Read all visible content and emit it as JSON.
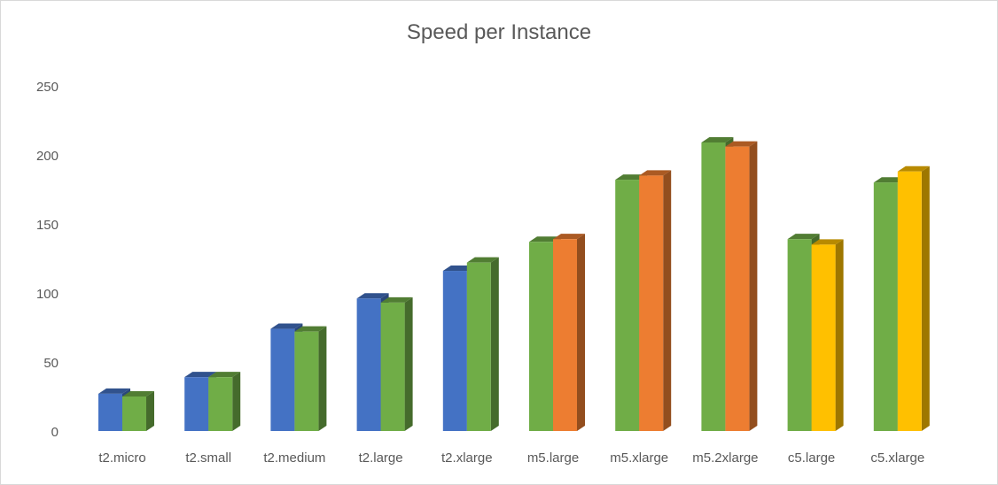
{
  "chart_data": {
    "type": "bar",
    "title": "Speed per Instance",
    "categories": [
      "t2.micro",
      "t2.small",
      "t2.medium",
      "t2.large",
      "t2.xlarge",
      "m5.large",
      "m5.xlarge",
      "m5.2xlarge",
      "c5.large",
      "c5.xlarge"
    ],
    "bars": [
      [
        {
          "value": 27,
          "color": "#4472c4"
        },
        {
          "value": 25,
          "color": "#70ad47"
        }
      ],
      [
        {
          "value": 39,
          "color": "#4472c4"
        },
        {
          "value": 39,
          "color": "#70ad47"
        }
      ],
      [
        {
          "value": 74,
          "color": "#4472c4"
        },
        {
          "value": 72,
          "color": "#70ad47"
        }
      ],
      [
        {
          "value": 96,
          "color": "#4472c4"
        },
        {
          "value": 93,
          "color": "#70ad47"
        }
      ],
      [
        {
          "value": 116,
          "color": "#4472c4"
        },
        {
          "value": 122,
          "color": "#70ad47"
        }
      ],
      [
        {
          "value": 137,
          "color": "#70ad47"
        },
        {
          "value": 139,
          "color": "#ed7d31"
        }
      ],
      [
        {
          "value": 182,
          "color": "#70ad47"
        },
        {
          "value": 185,
          "color": "#ed7d31"
        }
      ],
      [
        {
          "value": 209,
          "color": "#70ad47"
        },
        {
          "value": 206,
          "color": "#ed7d31"
        }
      ],
      [
        {
          "value": 139,
          "color": "#70ad47"
        },
        {
          "value": 135,
          "color": "#ffc000"
        }
      ],
      [
        {
          "value": 180,
          "color": "#70ad47"
        },
        {
          "value": 188,
          "color": "#ffc000"
        }
      ]
    ],
    "yticks": [
      "0",
      "50",
      "100",
      "150",
      "200",
      "250"
    ],
    "ylim": [
      0,
      250
    ],
    "grid": false,
    "style": "3d-column"
  }
}
